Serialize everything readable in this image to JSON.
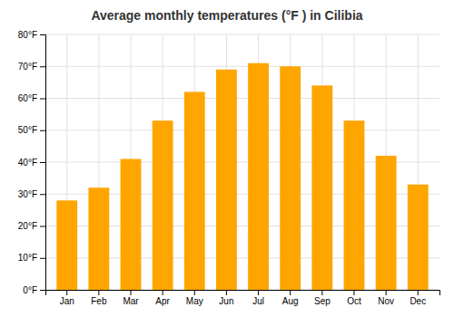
{
  "chart_data": {
    "type": "bar",
    "title": "Average monthly temperatures (°F ) in Cilibia",
    "categories": [
      "Jan",
      "Feb",
      "Mar",
      "Apr",
      "May",
      "Jun",
      "Jul",
      "Aug",
      "Sep",
      "Oct",
      "Nov",
      "Dec"
    ],
    "values": [
      28,
      32,
      41,
      53,
      62,
      69,
      71,
      70,
      64,
      53,
      42,
      33
    ],
    "color": "#FFA500",
    "ylim": [
      0,
      80
    ],
    "yticks": [
      {
        "value": 0,
        "label": "0°F"
      },
      {
        "value": 10,
        "label": "10°F"
      },
      {
        "value": 20,
        "label": "20°F"
      },
      {
        "value": 30,
        "label": "30°F"
      },
      {
        "value": 40,
        "label": "40°F"
      },
      {
        "value": 50,
        "label": "50°F"
      },
      {
        "value": 60,
        "label": "60°F"
      },
      {
        "value": 70,
        "label": "70°F"
      },
      {
        "value": 80,
        "label": "80°F"
      }
    ],
    "grid": true
  }
}
